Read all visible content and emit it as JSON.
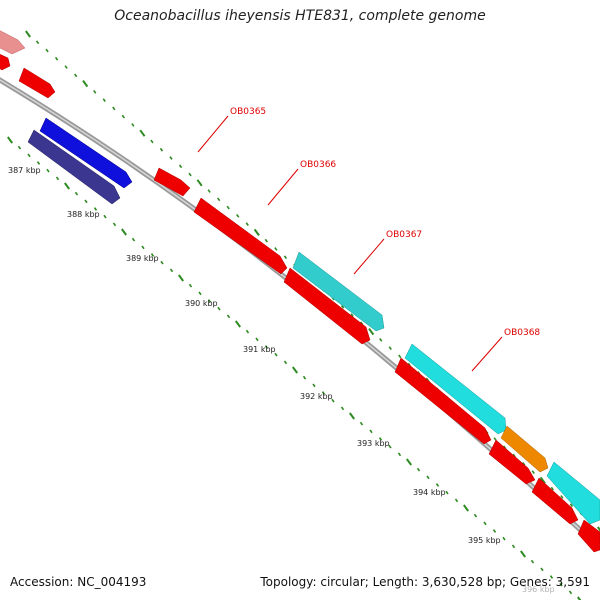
{
  "header": {
    "title": "Oceanobacillus iheyensis HTE831, complete genome"
  },
  "footer": {
    "accession": "Accession: NC_004193",
    "summary": "Topology: circular; Length: 3,630,528 bp; Genes: 3,591"
  },
  "ruler": {
    "labels": [
      "387 kbp",
      "388 kbp",
      "389 kbp",
      "390 kbp",
      "391 kbp",
      "392 kbp",
      "393 kbp",
      "394 kbp",
      "395 kbp",
      "396 kbp"
    ]
  },
  "gene_labels": [
    "OB0365",
    "OB0366",
    "OB0367",
    "OB0368"
  ],
  "colors": {
    "backbone": "#888888",
    "tick": "#2e8b22",
    "label": "#dd0000",
    "cds_red": "#ee0000",
    "cds_cyan": "#33cccc",
    "cds_blue": "#1010dd",
    "cds_navy": "#3b3690",
    "cds_orange": "#ee8800",
    "cds_pink": "#e89090"
  }
}
